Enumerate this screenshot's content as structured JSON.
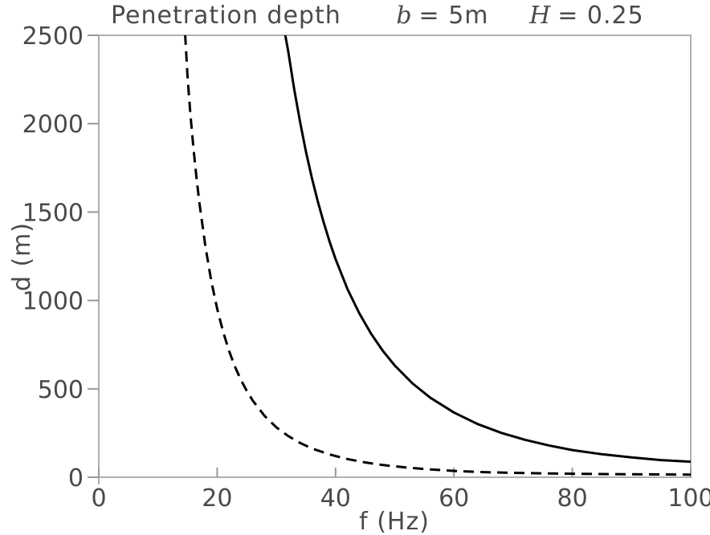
{
  "style": {
    "background": "#ffffff",
    "frame_color": "#b0b0b0",
    "tick_color": "#999999",
    "text_color": "#4a4a4a",
    "curve_color": "#000000"
  },
  "chart_data": {
    "type": "line",
    "title": {
      "text": "Penetration depth",
      "annotations": [
        {
          "var": "b",
          "value": "= 5m"
        },
        {
          "var": "H",
          "value": "= 0.25"
        }
      ]
    },
    "xlabel": "f (Hz)",
    "ylabel": "d (m)",
    "xlim": [
      0,
      100
    ],
    "ylim": [
      0,
      2500
    ],
    "x_ticks": [
      0,
      20,
      40,
      60,
      80,
      100
    ],
    "y_ticks": [
      0,
      500,
      1000,
      1500,
      2000,
      2500
    ],
    "grid": false,
    "legend": "none",
    "series": [
      {
        "name": "solid-curve",
        "style": "solid",
        "color": "#000000",
        "points": [
          [
            31.2,
            2600
          ],
          [
            31.5,
            2500
          ],
          [
            32,
            2411
          ],
          [
            33,
            2198
          ],
          [
            34,
            2010
          ],
          [
            35,
            1842
          ],
          [
            36,
            1693
          ],
          [
            37,
            1560
          ],
          [
            38,
            1440
          ],
          [
            39,
            1332
          ],
          [
            40,
            1234
          ],
          [
            42,
            1066
          ],
          [
            44,
            928
          ],
          [
            46,
            812
          ],
          [
            48,
            714
          ],
          [
            50,
            632
          ],
          [
            53,
            531
          ],
          [
            56,
            450
          ],
          [
            60,
            366
          ],
          [
            64,
            301
          ],
          [
            68,
            251
          ],
          [
            72,
            212
          ],
          [
            76,
            180
          ],
          [
            80,
            154
          ],
          [
            85,
            130
          ],
          [
            90,
            112
          ],
          [
            95,
            97
          ],
          [
            100,
            88
          ]
        ]
      },
      {
        "name": "dashed-curve",
        "style": "dashed",
        "color": "#000000",
        "points": [
          [
            14.3,
            2600
          ],
          [
            14.6,
            2500
          ],
          [
            15,
            2258
          ],
          [
            15.5,
            2046
          ],
          [
            16,
            1860
          ],
          [
            16.5,
            1696
          ],
          [
            17,
            1551
          ],
          [
            18,
            1307
          ],
          [
            19,
            1111
          ],
          [
            20,
            953
          ],
          [
            21,
            823
          ],
          [
            22,
            716
          ],
          [
            23,
            626
          ],
          [
            24,
            551
          ],
          [
            25,
            488
          ],
          [
            26,
            434
          ],
          [
            28,
            347
          ],
          [
            30,
            282
          ],
          [
            32,
            233
          ],
          [
            34,
            194
          ],
          [
            36,
            163
          ],
          [
            39,
            129
          ],
          [
            42,
            103
          ],
          [
            45,
            84
          ],
          [
            48,
            69
          ],
          [
            52,
            55
          ],
          [
            56,
            44
          ],
          [
            60,
            36
          ],
          [
            65,
            29
          ],
          [
            70,
            25
          ],
          [
            75,
            22
          ],
          [
            80,
            20
          ],
          [
            85,
            18
          ],
          [
            90,
            17
          ],
          [
            95,
            16
          ],
          [
            100,
            15
          ]
        ]
      }
    ]
  }
}
